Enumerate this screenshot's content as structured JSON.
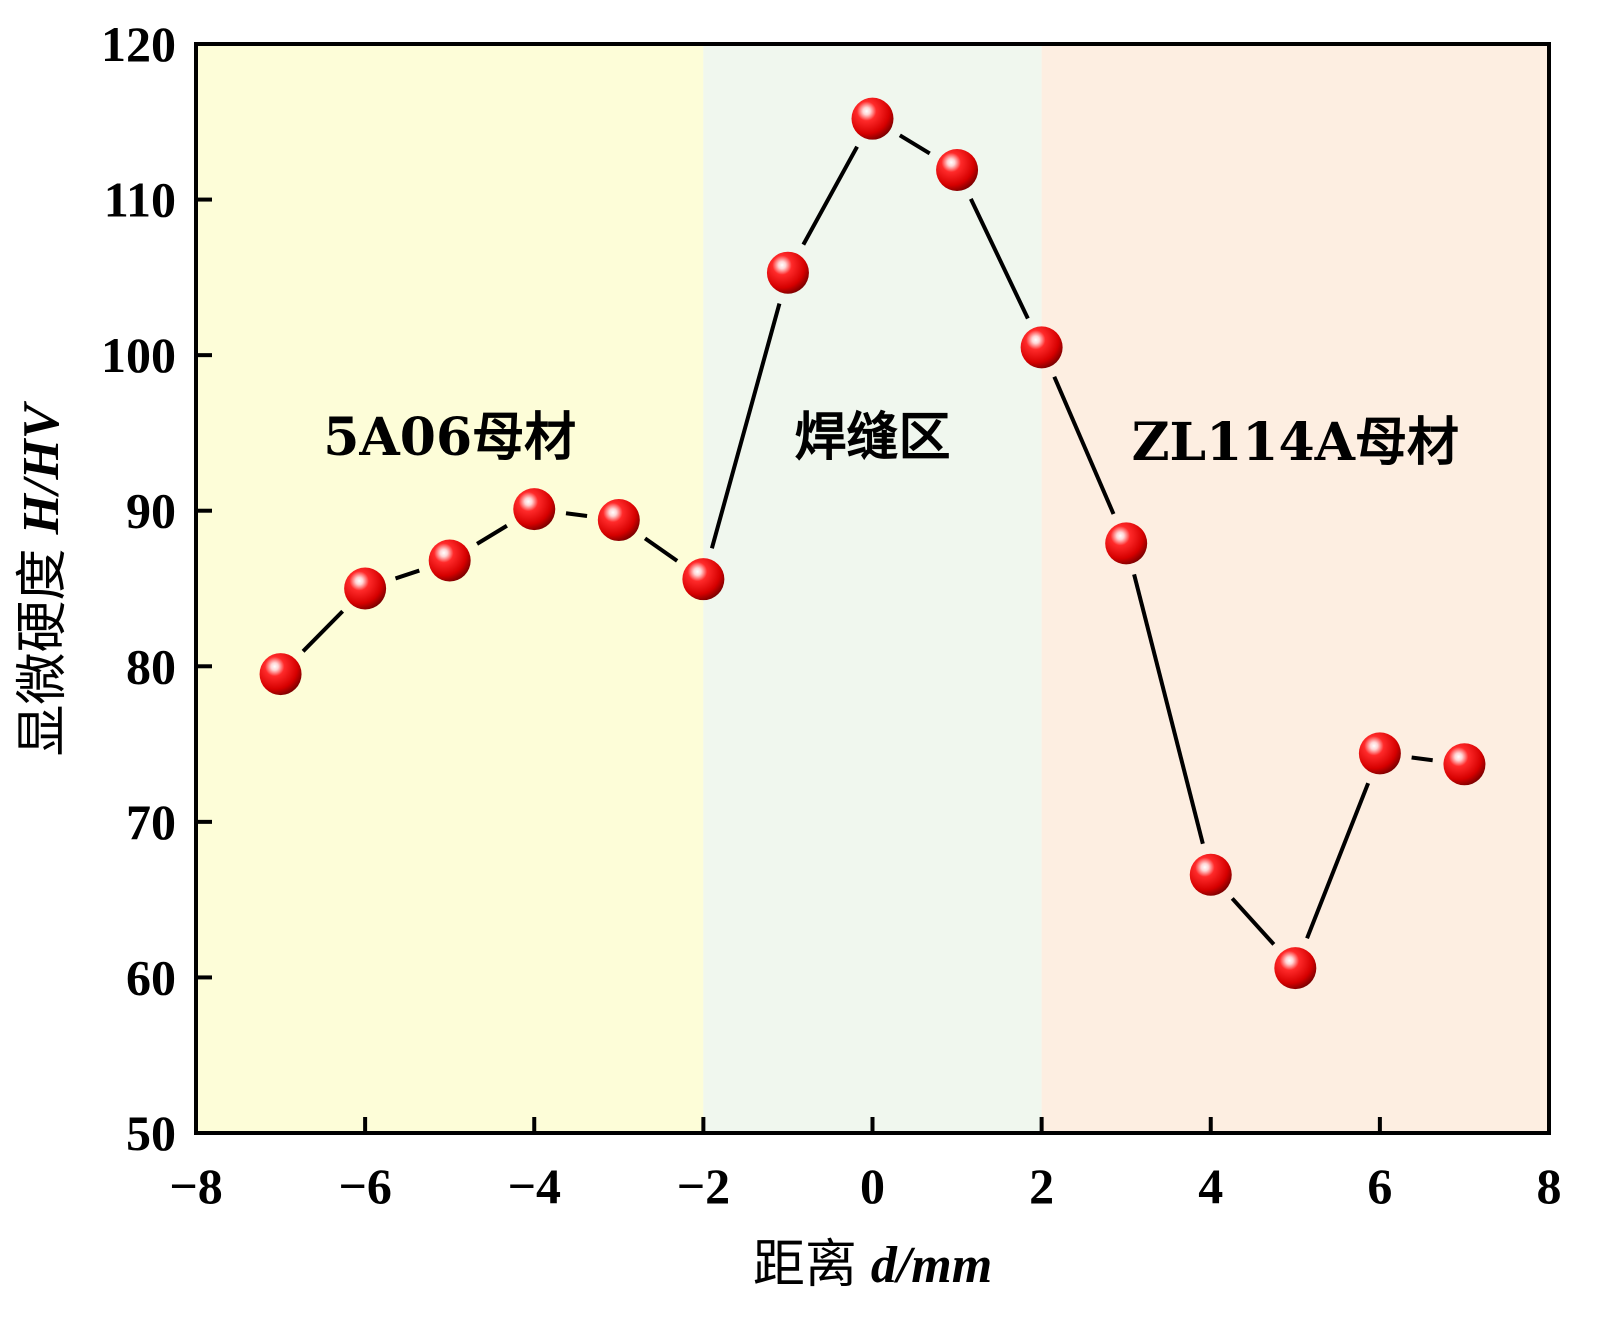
{
  "chart_data": {
    "type": "scatter",
    "mode": "line+markers",
    "title": "",
    "xlabel": {
      "prefix": "距离",
      "var": "d/mm"
    },
    "ylabel": {
      "prefix": "显微硬度",
      "var": "H/HV"
    },
    "xlim": [
      -8,
      8
    ],
    "ylim": [
      50,
      120
    ],
    "xticks": [
      -8,
      -6,
      -4,
      -2,
      0,
      2,
      4,
      6,
      8
    ],
    "xtick_labels": [
      "−8",
      "−6",
      "−4",
      "−2",
      "0",
      "2",
      "4",
      "6",
      "8"
    ],
    "yticks": [
      50,
      60,
      70,
      80,
      90,
      100,
      110,
      120
    ],
    "ytick_labels": [
      "50",
      "60",
      "70",
      "80",
      "90",
      "100",
      "110",
      "120"
    ],
    "grid": false,
    "series": [
      {
        "x": [
          -7,
          -6,
          -5,
          -4,
          -3,
          -2,
          -1,
          0,
          1,
          2,
          3,
          4,
          5,
          6,
          7
        ],
        "y": [
          79.5,
          85,
          86.8,
          90.1,
          89.4,
          85.6,
          105.3,
          115.2,
          111.9,
          100.5,
          87.9,
          66.6,
          60.6,
          74.4,
          73.7
        ],
        "color": "#e00000"
      }
    ],
    "regions": [
      {
        "label": "5A06母材",
        "x_from": -8,
        "x_to": -2,
        "color": "#fdfdd8"
      },
      {
        "label": "焊缝区",
        "x_from": -2,
        "x_to": 2,
        "color": "#f0f7ee"
      },
      {
        "label": "ZL114A母材",
        "x_from": 2,
        "x_to": 8,
        "color": "#fdeee1"
      }
    ]
  }
}
